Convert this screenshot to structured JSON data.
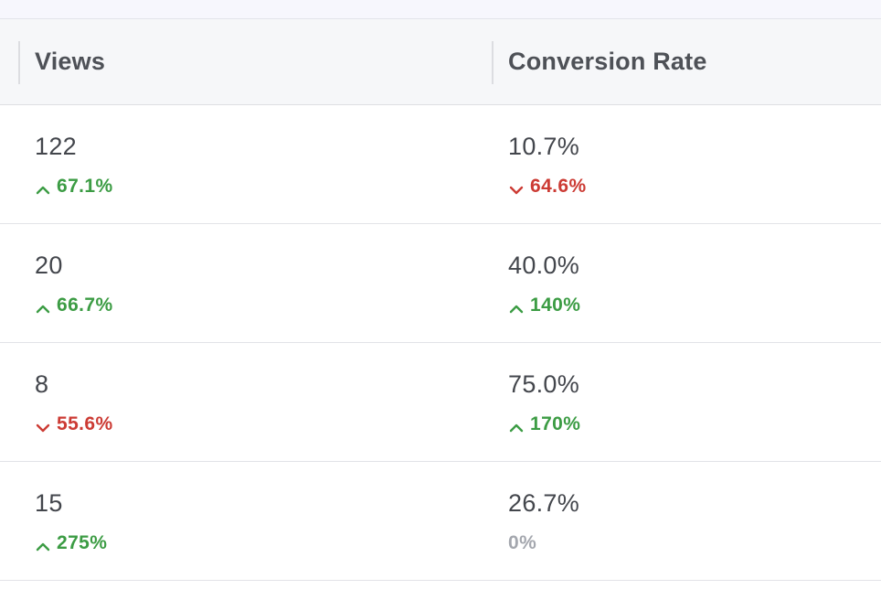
{
  "table": {
    "headers": {
      "views": "Views",
      "conversion_rate": "Conversion Rate"
    },
    "rows": [
      {
        "views": "122",
        "views_delta": "67.1%",
        "views_trend": "up",
        "conversion_rate": "10.7%",
        "conversion_delta": "64.6%",
        "conversion_trend": "down"
      },
      {
        "views": "20",
        "views_delta": "66.7%",
        "views_trend": "up",
        "conversion_rate": "40.0%",
        "conversion_delta": "140%",
        "conversion_trend": "up"
      },
      {
        "views": "8",
        "views_delta": "55.6%",
        "views_trend": "down",
        "conversion_rate": "75.0%",
        "conversion_delta": "170%",
        "conversion_trend": "up"
      },
      {
        "views": "15",
        "views_delta": "275%",
        "views_trend": "up",
        "conversion_rate": "26.7%",
        "conversion_delta": "0%",
        "conversion_trend": "neutral"
      }
    ]
  },
  "colors": {
    "positive": "#3c9c44",
    "negative": "#cc3b34",
    "neutral": "#a4a7ae"
  },
  "icons": {
    "up": "chevron-up-icon",
    "down": "chevron-down-icon"
  }
}
